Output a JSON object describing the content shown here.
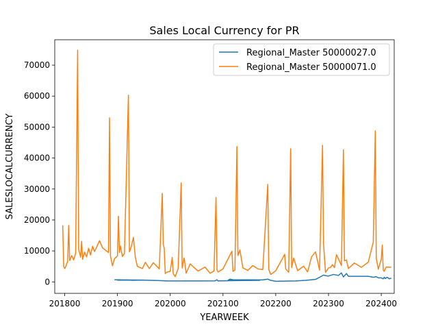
{
  "chart_data": {
    "type": "line",
    "title": "Sales Local Currency for PR",
    "xlabel": "YEARWEEK",
    "ylabel": "SALESLOCALCURRENCY",
    "xlim": [
      201743,
      202413
    ],
    "ylim": [
      -3700,
      78200
    ],
    "x_ticks": [
      201800,
      201900,
      202000,
      202100,
      202200,
      202300,
      202400
    ],
    "x_tick_labels": [
      "201800",
      "201900",
      "202000",
      "202100",
      "202200",
      "202300",
      "202400"
    ],
    "y_ticks": [
      0,
      10000,
      20000,
      30000,
      40000,
      50000,
      60000,
      70000
    ],
    "y_tick_labels": [
      "0",
      "10000",
      "20000",
      "30000",
      "40000",
      "50000",
      "60000",
      "70000"
    ],
    "grid": false,
    "legend_position": "top-right",
    "series": [
      {
        "name": "Regional_Master 50000027.0",
        "color": "#1f77b4",
        "points": [
          [
            201850,
            700
          ],
          [
            201860,
            650
          ],
          [
            201880,
            600
          ],
          [
            201900,
            550
          ],
          [
            201910,
            650
          ],
          [
            201915,
            500
          ],
          [
            201925,
            600
          ],
          [
            201940,
            450
          ],
          [
            201950,
            300
          ],
          [
            202000,
            300
          ],
          [
            202030,
            300
          ],
          [
            202045,
            350
          ],
          [
            202047,
            700
          ],
          [
            202048,
            300
          ],
          [
            202060,
            400
          ],
          [
            202090,
            500
          ],
          [
            202105,
            500
          ],
          [
            202107,
            900
          ],
          [
            202110,
            700
          ],
          [
            202140,
            650
          ],
          [
            202145,
            900
          ],
          [
            202148,
            500
          ],
          [
            202200,
            200
          ],
          [
            202220,
            300
          ],
          [
            202230,
            500
          ],
          [
            202240,
            800
          ],
          [
            202248,
            2200
          ],
          [
            202252,
            1900
          ],
          [
            202300,
            1900
          ],
          [
            202305,
            2400
          ],
          [
            202310,
            2100
          ],
          [
            202313,
            2900
          ],
          [
            202315,
            1600
          ],
          [
            202318,
            2700
          ],
          [
            202320,
            1800
          ],
          [
            202340,
            1800
          ],
          [
            202345,
            1500
          ],
          [
            202348,
            1700
          ],
          [
            202350,
            1300
          ],
          [
            202400,
            1300
          ],
          [
            202402,
            1000
          ],
          [
            202403,
            1500
          ],
          [
            202404,
            1100
          ],
          [
            202406,
            1500
          ],
          [
            202408,
            1000
          ],
          [
            202410,
            1200
          ]
        ]
      },
      {
        "name": "Regional_Master 50000071.0",
        "color": "#ff7f0e",
        "points": [
          [
            201751,
            18300
          ],
          [
            201752,
            5000
          ],
          [
            201753,
            4300
          ],
          [
            201754,
            4900
          ],
          [
            201803,
            6700
          ],
          [
            201804,
            18200
          ],
          [
            201805,
            6900
          ],
          [
            201807,
            8500
          ],
          [
            201809,
            7100
          ],
          [
            201811,
            9200
          ],
          [
            201813,
            74800
          ],
          [
            201814,
            10500
          ],
          [
            201816,
            8000
          ],
          [
            201817,
            13100
          ],
          [
            201818,
            7300
          ],
          [
            201820,
            9600
          ],
          [
            201822,
            8100
          ],
          [
            201824,
            10900
          ],
          [
            201826,
            8700
          ],
          [
            201828,
            11500
          ],
          [
            201830,
            9800
          ],
          [
            201835,
            13300
          ],
          [
            201838,
            11000
          ],
          [
            201844,
            9500
          ],
          [
            201845,
            53000
          ],
          [
            201846,
            8300
          ],
          [
            201848,
            5200
          ],
          [
            201850,
            7500
          ],
          [
            201900,
            8400
          ],
          [
            201901,
            21200
          ],
          [
            201902,
            9500
          ],
          [
            201903,
            11600
          ],
          [
            201905,
            8200
          ],
          [
            201907,
            9200
          ],
          [
            201911,
            60300
          ],
          [
            201912,
            9700
          ],
          [
            201914,
            11500
          ],
          [
            201916,
            14400
          ],
          [
            201918,
            7800
          ],
          [
            201920,
            5000
          ],
          [
            201925,
            4300
          ],
          [
            201928,
            6300
          ],
          [
            201932,
            4300
          ],
          [
            201936,
            6200
          ],
          [
            201942,
            4200
          ],
          [
            201945,
            28600
          ],
          [
            201946,
            12100
          ],
          [
            201947,
            10800
          ],
          [
            201948,
            2700
          ],
          [
            201950,
            3200
          ],
          [
            202000,
            3400
          ],
          [
            202002,
            7900
          ],
          [
            202003,
            2700
          ],
          [
            202005,
            1700
          ],
          [
            202008,
            4300
          ],
          [
            202011,
            32000
          ],
          [
            202012,
            4500
          ],
          [
            202014,
            7700
          ],
          [
            202016,
            2800
          ],
          [
            202020,
            5800
          ],
          [
            202028,
            3500
          ],
          [
            202035,
            4800
          ],
          [
            202040,
            2800
          ],
          [
            202044,
            3500
          ],
          [
            202046,
            27300
          ],
          [
            202047,
            3800
          ],
          [
            202048,
            3200
          ],
          [
            202100,
            4200
          ],
          [
            202109,
            9900
          ],
          [
            202110,
            3400
          ],
          [
            202112,
            3800
          ],
          [
            202114,
            43700
          ],
          [
            202115,
            8500
          ],
          [
            202117,
            10300
          ],
          [
            202120,
            4500
          ],
          [
            202125,
            3700
          ],
          [
            202130,
            5300
          ],
          [
            202135,
            4200
          ],
          [
            202140,
            4000
          ],
          [
            202145,
            31500
          ],
          [
            202146,
            4000
          ],
          [
            202148,
            2400
          ],
          [
            202200,
            3600
          ],
          [
            202209,
            8900
          ],
          [
            202210,
            4200
          ],
          [
            202213,
            3100
          ],
          [
            202215,
            43000
          ],
          [
            202216,
            4600
          ],
          [
            202218,
            7700
          ],
          [
            202222,
            3600
          ],
          [
            202228,
            5100
          ],
          [
            202232,
            3200
          ],
          [
            202236,
            8100
          ],
          [
            202240,
            9700
          ],
          [
            202244,
            3800
          ],
          [
            202247,
            44100
          ],
          [
            202248,
            12300
          ],
          [
            202250,
            3100
          ],
          [
            202300,
            4500
          ],
          [
            202302,
            4700
          ],
          [
            202304,
            5600
          ],
          [
            202306,
            4600
          ],
          [
            202308,
            8800
          ],
          [
            202313,
            5300
          ],
          [
            202315,
            42700
          ],
          [
            202316,
            6800
          ],
          [
            202318,
            7100
          ],
          [
            202320,
            4300
          ],
          [
            202326,
            6100
          ],
          [
            202333,
            4700
          ],
          [
            202340,
            6400
          ],
          [
            202345,
            12900
          ],
          [
            202347,
            48800
          ],
          [
            202348,
            7600
          ],
          [
            202350,
            4100
          ],
          [
            202400,
            7300
          ],
          [
            202401,
            11900
          ],
          [
            202402,
            3800
          ],
          [
            202403,
            3400
          ],
          [
            202405,
            4800
          ],
          [
            202410,
            4700
          ]
        ]
      }
    ]
  }
}
